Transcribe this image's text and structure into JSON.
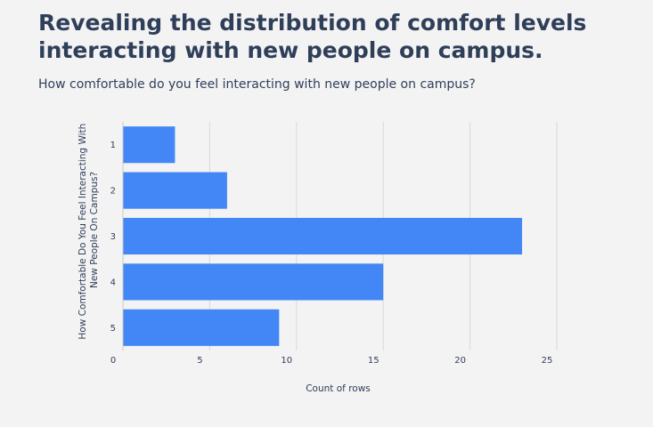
{
  "header": {
    "title": "Revealing the distribution of comfort levels interacting with new people on campus.",
    "subtitle": "How comfortable do you feel interacting with new people on campus?"
  },
  "colors": {
    "bar": "#4287f5",
    "grid": "#d9d9d9",
    "text": "#2f3f5a",
    "background": "#f3f3f3"
  },
  "chart_data": {
    "type": "bar",
    "orientation": "horizontal",
    "categories": [
      "1",
      "2",
      "3",
      "4",
      "5"
    ],
    "values": [
      3,
      6,
      23,
      15,
      9
    ],
    "xlabel": "Count of rows",
    "ylabel_lines": [
      "How Comfortable Do You Feel Interacting With",
      "New People On Campus?"
    ],
    "xlim": [
      0,
      25
    ],
    "xticks": [
      0,
      5,
      10,
      15,
      20,
      25
    ],
    "grid": true,
    "legend": "none"
  }
}
